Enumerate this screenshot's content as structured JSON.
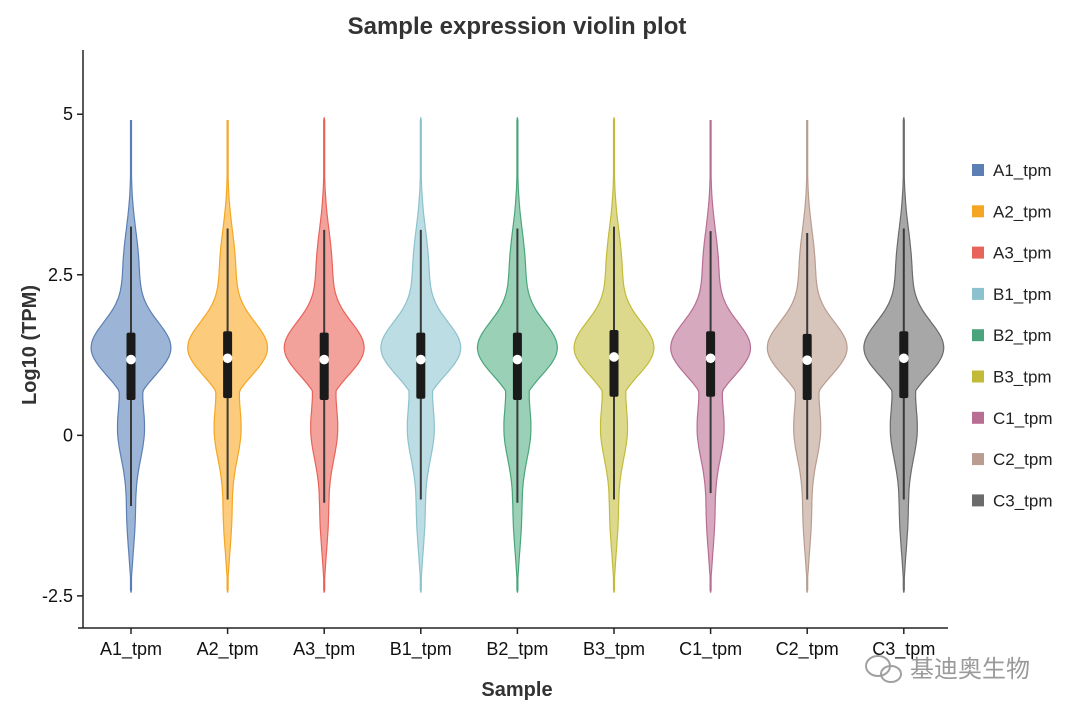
{
  "chart_data": {
    "type": "violin",
    "title": "Sample expression violin plot",
    "xlabel": "Sample",
    "ylabel": "Log10 (TPM)",
    "ylim": [
      -3,
      6
    ],
    "yticks": [
      -2.5,
      0,
      2.5,
      5
    ],
    "ytick_labels": [
      "-2.5",
      "0",
      "2.5",
      "5"
    ],
    "categories": [
      "A1_tpm",
      "A2_tpm",
      "A3_tpm",
      "B1_tpm",
      "B2_tpm",
      "B3_tpm",
      "C1_tpm",
      "C2_tpm",
      "C3_tpm"
    ],
    "series": [
      {
        "name": "A1_tpm",
        "color": "#5b7fb3",
        "fill": "#9cb5d6",
        "min": -2.45,
        "max": 4.9,
        "q1": 0.55,
        "median": 1.18,
        "q3": 1.6,
        "whisker_low": -1.1,
        "whisker_high": 3.25
      },
      {
        "name": "A2_tpm",
        "color": "#f5a623",
        "fill": "#fccb7b",
        "min": -2.45,
        "max": 4.9,
        "q1": 0.58,
        "median": 1.2,
        "q3": 1.62,
        "whisker_low": -1.0,
        "whisker_high": 3.22
      },
      {
        "name": "A3_tpm",
        "color": "#e8635a",
        "fill": "#f3a19b",
        "min": -2.45,
        "max": 4.95,
        "q1": 0.55,
        "median": 1.18,
        "q3": 1.6,
        "whisker_low": -1.05,
        "whisker_high": 3.2
      },
      {
        "name": "B1_tpm",
        "color": "#8cc2cd",
        "fill": "#bcdde3",
        "min": -2.45,
        "max": 4.95,
        "q1": 0.57,
        "median": 1.18,
        "q3": 1.6,
        "whisker_low": -1.0,
        "whisker_high": 3.2
      },
      {
        "name": "B2_tpm",
        "color": "#4aa57c",
        "fill": "#9ad1b6",
        "min": -2.45,
        "max": 4.95,
        "q1": 0.55,
        "median": 1.18,
        "q3": 1.6,
        "whisker_low": -1.05,
        "whisker_high": 3.22
      },
      {
        "name": "B3_tpm",
        "color": "#c2bb3a",
        "fill": "#dcd98d",
        "min": -2.45,
        "max": 4.95,
        "q1": 0.6,
        "median": 1.22,
        "q3": 1.64,
        "whisker_low": -1.0,
        "whisker_high": 3.25
      },
      {
        "name": "C1_tpm",
        "color": "#b86e93",
        "fill": "#d6a9bf",
        "min": -2.45,
        "max": 4.9,
        "q1": 0.6,
        "median": 1.2,
        "q3": 1.62,
        "whisker_low": -0.9,
        "whisker_high": 3.18
      },
      {
        "name": "C2_tpm",
        "color": "#b89d90",
        "fill": "#d7c4bb",
        "min": -2.45,
        "max": 4.9,
        "q1": 0.55,
        "median": 1.17,
        "q3": 1.58,
        "whisker_low": -1.0,
        "whisker_high": 3.15
      },
      {
        "name": "C3_tpm",
        "color": "#6b6b6b",
        "fill": "#a7a7a7",
        "min": -2.45,
        "max": 4.95,
        "q1": 0.58,
        "median": 1.2,
        "q3": 1.62,
        "whisker_low": -1.0,
        "whisker_high": 3.22
      }
    ],
    "legend_position": "right",
    "grid": false
  },
  "watermark": {
    "text": "基迪奥生物",
    "icon": "wechat-icon"
  }
}
